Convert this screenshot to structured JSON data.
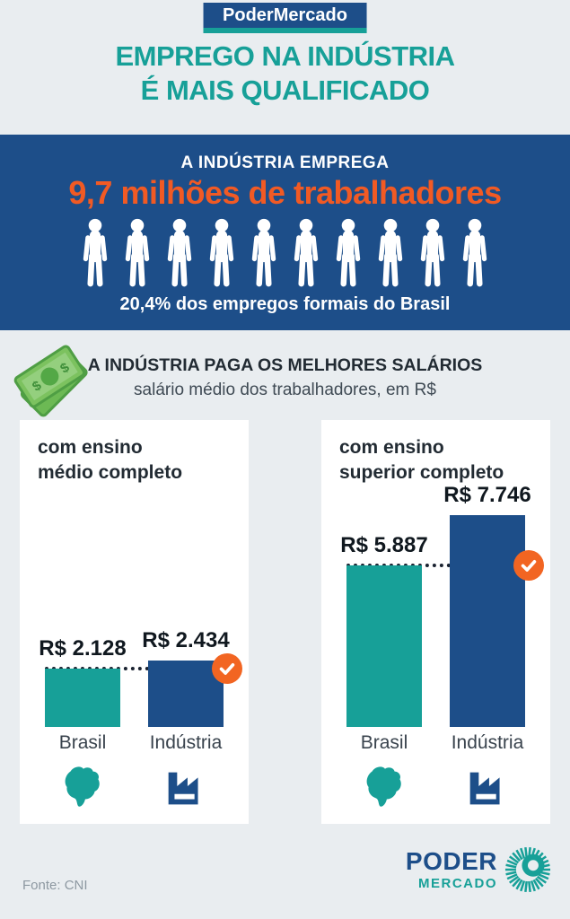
{
  "badge": {
    "label": "PoderMercado"
  },
  "title": {
    "line1": "EMPREGO NA INDÚSTRIA",
    "line2": "É MAIS QUALIFICADO"
  },
  "banner": {
    "heading": "A INDÚSTRIA EMPREGA",
    "highlight": "9,7 milhões de trabalhadores",
    "caption": "20,4% dos empregos formais do Brasil",
    "people_count": 10
  },
  "salary": {
    "heading": "A INDÚSTRIA PAGA OS MELHORES SALÁRIOS",
    "subheading": "salário médio dos trabalhadores, em R$"
  },
  "chart_data": [
    {
      "type": "bar",
      "title": "com ensino\nmédio completo",
      "categories": [
        "Brasil",
        "Indústria"
      ],
      "values": [
        2128,
        2434
      ],
      "value_labels": [
        "R$ 2.128",
        "R$ 2.434"
      ],
      "series_colors": [
        "#17a098",
        "#1d4e89"
      ],
      "unit": "R$",
      "reference_line_at": 2128,
      "annotation": "check-circle on Indústria bar",
      "legend": "none",
      "grid": "off"
    },
    {
      "type": "bar",
      "title": "com ensino\nsuperior completo",
      "categories": [
        "Brasil",
        "Indústria"
      ],
      "values": [
        5887,
        7746
      ],
      "value_labels": [
        "R$ 5.887",
        "R$ 7.746"
      ],
      "series_colors": [
        "#17a098",
        "#1d4e89"
      ],
      "unit": "R$",
      "reference_line_at": 5887,
      "annotation": "check-circle on Indústria bar",
      "legend": "none",
      "grid": "off"
    }
  ],
  "footer": {
    "source": "Fonte: CNI",
    "logo_line1": "PODER",
    "logo_line2": "MERCADO"
  },
  "icons": {
    "person": "person-pictogram",
    "money": "cash-bills",
    "check": "check-circle",
    "brasil": "brazil-map",
    "industria": "factory",
    "logo_mark": "sunburst"
  },
  "colors": {
    "background": "#e9edf0",
    "navy": "#1d4e89",
    "teal": "#17a098",
    "orange_text": "#f15a24",
    "orange_badge": "#f26522",
    "card": "#ffffff",
    "dark_text": "#222b33",
    "muted_text": "#8d98a1",
    "money_green": "#7cc25f"
  }
}
